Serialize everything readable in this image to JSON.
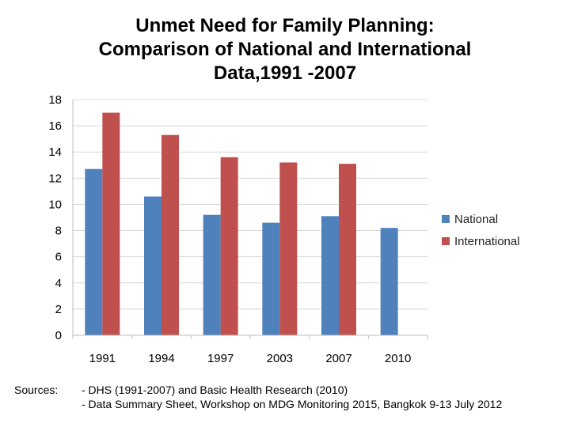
{
  "title": {
    "line1": "Unmet Need for Family Planning:",
    "line2": "Comparison of National and International",
    "line3": "Data,1991 -2007"
  },
  "chart_data": {
    "type": "bar",
    "categories": [
      "1991",
      "1994",
      "1997",
      "2003",
      "2007",
      "2010"
    ],
    "series": [
      {
        "name": "National",
        "color": "#4f81bd",
        "values": [
          12.7,
          10.6,
          9.2,
          8.6,
          9.1,
          8.2
        ]
      },
      {
        "name": "International",
        "color": "#c0504d",
        "values": [
          17.0,
          15.3,
          13.6,
          13.2,
          13.1,
          null
        ]
      }
    ],
    "yticks": [
      "0",
      "2",
      "4",
      "6",
      "8",
      "10",
      "12",
      "14",
      "16",
      "18"
    ],
    "ylim": [
      0,
      18
    ],
    "ystep": 2,
    "grid": true,
    "legend_position": "right",
    "xlabel": "",
    "ylabel": ""
  },
  "sources": {
    "label": "Sources:",
    "line1": "- DHS (1991-2007) and Basic Health Research (2010)",
    "line2": "- Data Summary Sheet, Workshop on MDG Monitoring 2015, Bangkok 9-13 July 2012"
  }
}
